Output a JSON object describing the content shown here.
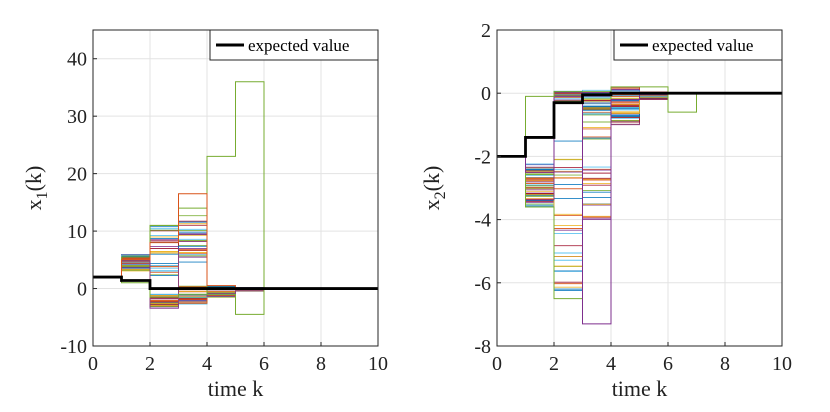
{
  "chart_data": [
    {
      "type": "line",
      "subtype": "stairs",
      "ylabel": "x_1(k)",
      "ylabel_main": "x",
      "ylabel_sub": "1",
      "ylabel_tail": "(k)",
      "xlabel": "time k",
      "xlim": [
        0,
        10
      ],
      "ylim": [
        -10,
        45
      ],
      "xticks": [
        0,
        2,
        4,
        6,
        8,
        10
      ],
      "yticks": [
        -10,
        0,
        10,
        20,
        30,
        40
      ],
      "grid": true,
      "legend": {
        "position": "top-right",
        "label": "expected value",
        "color": "#000000"
      },
      "expected_value": {
        "x": [
          0,
          1,
          2,
          3,
          4,
          5,
          6,
          7,
          8,
          9,
          10
        ],
        "y": [
          2.0,
          1.4,
          0.0,
          0.0,
          0.0,
          0.0,
          0.0,
          0.0,
          0.0,
          0.0,
          0.0
        ]
      },
      "samples": {
        "count": 60,
        "note": "many randomly colored sample trajectories"
      },
      "highlighted_samples": [
        {
          "x": [
            0,
            1,
            2,
            3,
            4,
            5,
            6,
            7,
            8,
            9,
            10
          ],
          "y": [
            2.0,
            1.0,
            -1.5,
            -1.0,
            23.0,
            36.0,
            0.0,
            0.0,
            0.0,
            0.0,
            0.0
          ],
          "color": "#77ac30"
        },
        {
          "x": [
            0,
            1,
            2,
            3,
            4,
            5,
            6,
            7,
            8,
            9,
            10
          ],
          "y": [
            2.0,
            5.5,
            11.0,
            14.0,
            -1.0,
            -4.5,
            0.0,
            0.0,
            0.0,
            0.0,
            0.0
          ],
          "color": "#77ac30"
        },
        {
          "x": [
            0,
            1,
            2,
            3,
            4,
            5,
            6,
            7,
            8,
            9,
            10
          ],
          "y": [
            2.0,
            5.0,
            8.0,
            16.5,
            0.5,
            0.0,
            0.0,
            0.0,
            0.0,
            0.0,
            0.0
          ],
          "color": "#d95319"
        }
      ]
    },
    {
      "type": "line",
      "subtype": "stairs",
      "ylabel": "x_2(k)",
      "ylabel_main": "x",
      "ylabel_sub": "2",
      "ylabel_tail": "(k)",
      "xlabel": "time k",
      "xlim": [
        0,
        10
      ],
      "ylim": [
        -8,
        2
      ],
      "xticks": [
        0,
        2,
        4,
        6,
        8,
        10
      ],
      "yticks": [
        -8,
        -6,
        -4,
        -2,
        0,
        2
      ],
      "grid": true,
      "legend": {
        "position": "top-right",
        "label": "expected value",
        "color": "#000000"
      },
      "expected_value": {
        "x": [
          0,
          1,
          2,
          3,
          4,
          5,
          6,
          7,
          8,
          9,
          10
        ],
        "y": [
          -2.0,
          -1.4,
          -0.3,
          -0.05,
          0.0,
          0.0,
          0.0,
          0.0,
          0.0,
          0.0,
          0.0
        ]
      },
      "samples": {
        "count": 60,
        "note": "many randomly colored sample trajectories"
      },
      "highlighted_samples": [
        {
          "x": [
            0,
            1,
            2,
            3,
            4,
            5,
            6,
            7,
            8,
            9,
            10
          ],
          "y": [
            -2.0,
            -3.6,
            -6.5,
            -0.5,
            0.0,
            0.0,
            0.0,
            0.0,
            0.0,
            0.0,
            0.0
          ],
          "color": "#77ac30"
        },
        {
          "x": [
            0,
            1,
            2,
            3,
            4,
            5,
            6,
            7,
            8,
            9,
            10
          ],
          "y": [
            -2.0,
            -2.5,
            -0.1,
            -7.3,
            -0.2,
            0.0,
            0.0,
            0.0,
            0.0,
            0.0,
            0.0
          ],
          "color": "#7e2f8e"
        },
        {
          "x": [
            0,
            1,
            2,
            3,
            4,
            5,
            6,
            7,
            8,
            9,
            10
          ],
          "y": [
            -2.0,
            -0.1,
            0.05,
            0.05,
            0.2,
            0.2,
            -0.6,
            0.0,
            0.0,
            0.0,
            0.0
          ],
          "color": "#77ac30"
        }
      ]
    }
  ]
}
